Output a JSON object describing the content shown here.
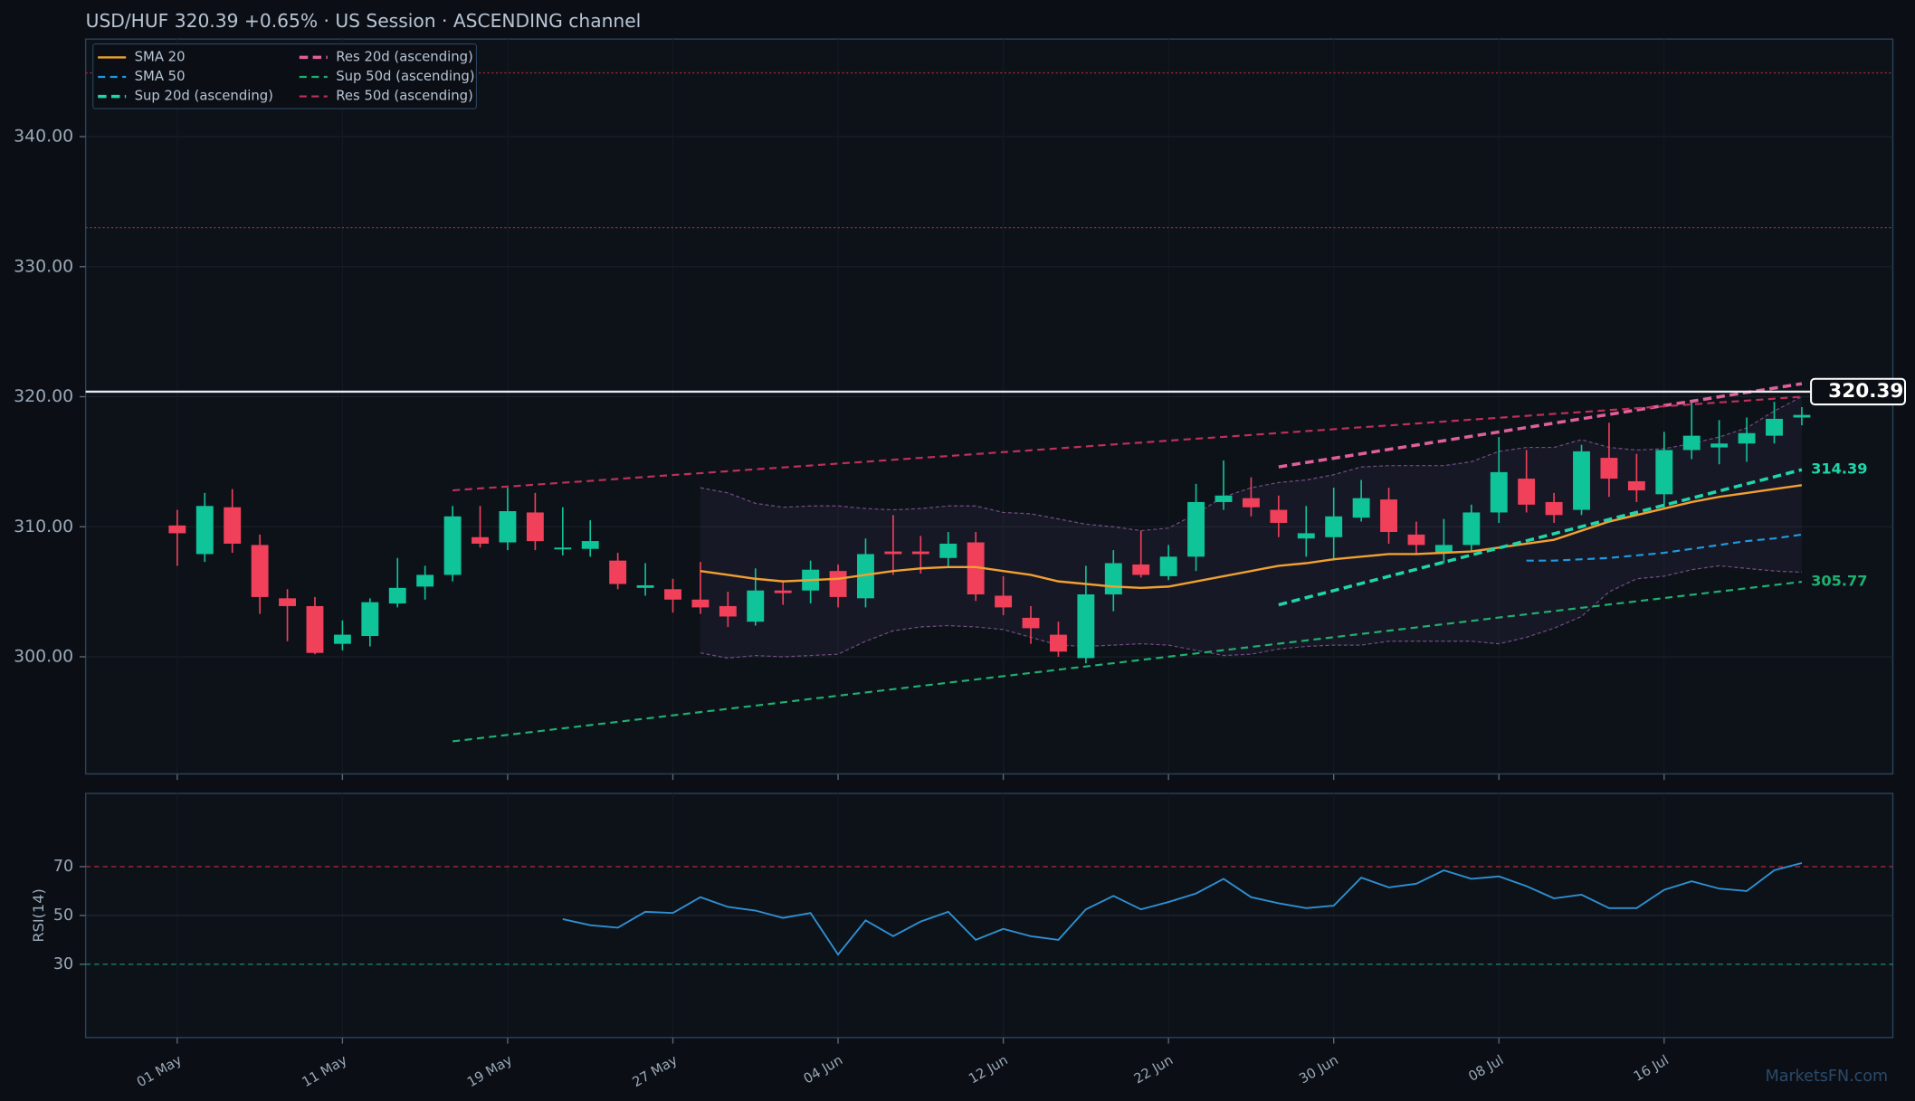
{
  "chart_data": {
    "type": "candlestick",
    "title": "USD/HUF   320.39   +0.65%  ·  US Session  ·  ASCENDING channel",
    "watermark": "MarketsFN.com",
    "categories": [
      "01 May",
      null,
      null,
      null,
      null,
      null,
      "11 May",
      null,
      null,
      null,
      null,
      null,
      "19 May",
      null,
      null,
      null,
      null,
      null,
      "27 May",
      null,
      null,
      null,
      null,
      null,
      "04 Jun",
      null,
      null,
      null,
      null,
      null,
      "12 Jun",
      null,
      null,
      null,
      null,
      null,
      "22 Jun",
      null,
      null,
      null,
      null,
      null,
      "30 Jun",
      null,
      null,
      null,
      null,
      null,
      "08 Jul",
      null,
      null,
      null,
      null,
      null,
      "16 Jul",
      null,
      null,
      null,
      null,
      null
    ],
    "open": [
      310.1,
      307.9,
      311.5,
      308.6,
      304.5,
      303.9,
      301.0,
      301.6,
      304.1,
      305.4,
      306.3,
      309.2,
      308.8,
      311.1,
      308.3,
      308.3,
      307.4,
      305.3,
      305.2,
      304.4,
      303.9,
      302.7,
      305.1,
      305.1,
      306.6,
      304.5,
      308.1,
      308.1,
      307.6,
      308.8,
      304.7,
      303.0,
      301.7,
      299.9,
      304.8,
      307.1,
      306.2,
      307.7,
      311.9,
      312.2,
      311.3,
      309.1,
      309.2,
      310.7,
      312.1,
      309.4,
      308.0,
      308.6,
      311.1,
      313.7,
      311.9,
      311.3,
      315.3,
      313.5,
      312.5,
      315.9,
      316.1,
      316.4,
      317.0,
      318.4
    ],
    "high": [
      311.3,
      312.6,
      312.9,
      309.4,
      305.2,
      304.6,
      302.8,
      304.5,
      307.6,
      307.0,
      311.6,
      311.6,
      313.0,
      312.6,
      311.5,
      310.5,
      308.0,
      307.2,
      306.0,
      307.3,
      305.0,
      306.8,
      305.9,
      307.4,
      307.1,
      309.1,
      310.9,
      309.3,
      309.6,
      309.6,
      306.2,
      303.9,
      302.7,
      307.0,
      308.2,
      309.7,
      308.6,
      313.3,
      315.1,
      313.8,
      312.4,
      311.6,
      313.0,
      313.6,
      313.0,
      310.4,
      310.6,
      311.7,
      316.9,
      315.9,
      312.6,
      316.3,
      318.0,
      315.6,
      317.3,
      319.7,
      318.2,
      318.4,
      319.6,
      319.2
    ],
    "low": [
      307.0,
      307.3,
      308.0,
      303.3,
      301.2,
      300.2,
      300.5,
      300.8,
      303.8,
      304.4,
      305.8,
      308.4,
      308.2,
      308.2,
      307.8,
      307.7,
      305.2,
      304.7,
      303.4,
      303.3,
      302.3,
      302.4,
      304.0,
      304.1,
      303.8,
      303.8,
      306.3,
      306.4,
      306.9,
      304.3,
      303.2,
      301.0,
      300.0,
      299.5,
      303.5,
      306.1,
      305.9,
      306.6,
      311.3,
      310.8,
      309.2,
      307.7,
      307.4,
      310.4,
      308.7,
      307.9,
      307.2,
      308.1,
      310.3,
      311.1,
      310.3,
      310.9,
      312.3,
      311.9,
      311.4,
      315.2,
      314.8,
      315.0,
      316.4,
      317.8
    ],
    "close": [
      309.5,
      311.6,
      308.7,
      304.6,
      303.9,
      300.3,
      301.7,
      304.2,
      305.3,
      306.3,
      310.8,
      308.7,
      311.2,
      308.9,
      308.4,
      308.9,
      305.6,
      305.5,
      304.4,
      303.8,
      303.1,
      305.1,
      304.9,
      306.7,
      304.6,
      307.9,
      307.9,
      307.9,
      308.7,
      304.8,
      303.8,
      302.2,
      300.4,
      304.8,
      307.2,
      306.3,
      307.7,
      311.9,
      312.4,
      311.5,
      310.3,
      309.5,
      310.8,
      312.2,
      309.6,
      308.6,
      308.6,
      311.1,
      314.2,
      311.7,
      310.9,
      315.8,
      313.7,
      312.8,
      315.9,
      317.0,
      316.4,
      317.2,
      318.3,
      318.6
    ],
    "up_color": "#10c49a",
    "down_color": "#f0405a",
    "series": [
      {
        "name": "SMA 20",
        "color": "#f0a030",
        "linestyle": "solid",
        "values": [
          null,
          null,
          null,
          null,
          null,
          null,
          null,
          null,
          null,
          null,
          null,
          null,
          null,
          null,
          null,
          null,
          null,
          null,
          null,
          306.6,
          306.3,
          306.0,
          305.8,
          305.9,
          306.0,
          306.3,
          306.6,
          306.8,
          306.9,
          306.9,
          306.6,
          306.3,
          305.8,
          305.6,
          305.4,
          305.3,
          305.4,
          305.8,
          306.2,
          306.6,
          307.0,
          307.2,
          307.5,
          307.7,
          307.9,
          307.9,
          308.0,
          308.1,
          308.4,
          308.7,
          309.0,
          309.7,
          310.4,
          310.9,
          311.4,
          311.9,
          312.3,
          312.6,
          312.9,
          313.2
        ]
      },
      {
        "name": "SMA 50",
        "color": "#1e9be0",
        "linestyle": "dashed",
        "values": [
          null,
          null,
          null,
          null,
          null,
          null,
          null,
          null,
          null,
          null,
          null,
          null,
          null,
          null,
          null,
          null,
          null,
          null,
          null,
          null,
          null,
          null,
          null,
          null,
          null,
          null,
          null,
          null,
          null,
          null,
          null,
          null,
          null,
          null,
          null,
          null,
          null,
          null,
          null,
          null,
          null,
          null,
          null,
          null,
          null,
          null,
          null,
          null,
          null,
          307.4,
          307.4,
          307.5,
          307.6,
          307.8,
          308.0,
          308.3,
          308.6,
          308.9,
          309.1,
          309.4
        ]
      },
      {
        "name": "Sup 20d (ascending)",
        "color": "#1fd6a8",
        "linestyle": "bold-dashed",
        "values": [
          null,
          null,
          null,
          null,
          null,
          null,
          null,
          null,
          null,
          null,
          null,
          null,
          null,
          null,
          null,
          null,
          null,
          null,
          null,
          null,
          null,
          null,
          null,
          null,
          null,
          null,
          null,
          null,
          null,
          null,
          null,
          null,
          null,
          null,
          null,
          null,
          null,
          null,
          null,
          null,
          304.0,
          304.55,
          305.09,
          305.64,
          306.19,
          306.73,
          307.28,
          307.83,
          308.37,
          308.92,
          309.47,
          310.01,
          310.56,
          311.11,
          311.66,
          312.2,
          312.75,
          313.3,
          313.84,
          314.39
        ]
      },
      {
        "name": "Res 20d (ascending)",
        "color": "#e0609a",
        "linestyle": "bold-dashed",
        "values": [
          null,
          null,
          null,
          null,
          null,
          null,
          null,
          null,
          null,
          null,
          null,
          null,
          null,
          null,
          null,
          null,
          null,
          null,
          null,
          null,
          null,
          null,
          null,
          null,
          null,
          null,
          null,
          null,
          null,
          null,
          null,
          null,
          null,
          null,
          null,
          null,
          null,
          null,
          null,
          null,
          314.6,
          314.94,
          315.27,
          315.61,
          315.95,
          316.28,
          316.62,
          316.96,
          317.29,
          317.63,
          317.97,
          318.3,
          318.64,
          318.98,
          319.32,
          319.65,
          319.99,
          320.33,
          320.66,
          321.0
        ]
      },
      {
        "name": "Sup 50d (ascending)",
        "color": "#20b070",
        "linestyle": "dashed",
        "values": [
          null,
          null,
          null,
          null,
          null,
          null,
          null,
          null,
          null,
          null,
          293.5,
          293.75,
          294.0,
          294.25,
          294.5,
          294.75,
          295.0,
          295.25,
          295.5,
          295.75,
          296.0,
          296.25,
          296.5,
          296.76,
          297.01,
          297.26,
          297.51,
          297.76,
          298.01,
          298.26,
          298.51,
          298.76,
          299.01,
          299.26,
          299.51,
          299.76,
          300.01,
          300.26,
          300.51,
          300.76,
          301.01,
          301.26,
          301.51,
          301.76,
          302.01,
          302.26,
          302.51,
          302.76,
          303.02,
          303.27,
          303.52,
          303.77,
          304.02,
          304.27,
          304.52,
          304.77,
          305.02,
          305.27,
          305.52,
          305.77
        ]
      },
      {
        "name": "Res 50d (ascending)",
        "color": "#c0305a",
        "linestyle": "dashed",
        "values": [
          null,
          null,
          null,
          null,
          null,
          null,
          null,
          null,
          null,
          null,
          312.8,
          312.95,
          313.09,
          313.24,
          313.39,
          313.53,
          313.68,
          313.83,
          313.98,
          314.12,
          314.27,
          314.42,
          314.56,
          314.71,
          314.86,
          315.0,
          315.15,
          315.3,
          315.44,
          315.59,
          315.74,
          315.88,
          316.03,
          316.18,
          316.33,
          316.47,
          316.62,
          316.77,
          316.91,
          317.06,
          317.21,
          317.35,
          317.5,
          317.65,
          317.79,
          317.94,
          318.09,
          318.24,
          318.38,
          318.53,
          318.68,
          318.82,
          318.97,
          319.12,
          319.26,
          319.41,
          319.56,
          319.7,
          319.85,
          320.0
        ]
      }
    ],
    "band": {
      "color": "#8a5a9a",
      "upper": [
        null,
        null,
        null,
        null,
        null,
        null,
        null,
        null,
        null,
        null,
        null,
        null,
        null,
        null,
        null,
        null,
        null,
        null,
        null,
        313.0,
        312.6,
        311.8,
        311.5,
        311.6,
        311.6,
        311.4,
        311.3,
        311.4,
        311.6,
        311.6,
        311.1,
        311.0,
        310.6,
        310.2,
        310.0,
        309.7,
        309.9,
        311.0,
        312.3,
        313.0,
        313.4,
        313.6,
        314.0,
        314.6,
        314.7,
        314.7,
        314.7,
        315.0,
        315.8,
        316.1,
        316.1,
        316.7,
        316.1,
        315.9,
        316.0,
        316.4,
        316.9,
        317.6,
        318.9,
        320.0
      ],
      "lower": [
        null,
        null,
        null,
        null,
        null,
        null,
        null,
        null,
        null,
        null,
        null,
        null,
        null,
        null,
        null,
        null,
        null,
        null,
        null,
        300.3,
        299.9,
        300.1,
        300.0,
        300.1,
        300.2,
        301.2,
        302.0,
        302.3,
        302.4,
        302.3,
        302.1,
        301.5,
        300.9,
        300.8,
        300.9,
        301.0,
        300.9,
        300.5,
        300.1,
        300.2,
        300.6,
        300.8,
        300.9,
        300.9,
        301.2,
        301.2,
        301.2,
        301.2,
        301.0,
        301.5,
        302.2,
        303.1,
        305.0,
        306.0,
        306.2,
        306.7,
        307.0,
        306.8,
        306.6,
        306.5
      ]
    },
    "levels": [
      344.9,
      333.0
    ],
    "level_color": "#a02838",
    "last_price": 320.39,
    "ylim": [
      291.0,
      347.5
    ],
    "yticks": [
      {
        "value": 300,
        "label": "300.00"
      },
      {
        "value": 310,
        "label": "310.00"
      },
      {
        "value": 320,
        "label": "320.00"
      },
      {
        "value": 330,
        "label": "330.00"
      },
      {
        "value": 340,
        "label": "340.00"
      }
    ],
    "grid": true,
    "legend": "upper left",
    "rsi": {
      "ylabel": "RSI(14)",
      "color": "#2f8fd0",
      "ylim": [
        0,
        100
      ],
      "yticks": [
        30,
        50,
        70
      ],
      "overbought": 70,
      "oversold": 30,
      "values": [
        null,
        null,
        null,
        null,
        null,
        null,
        null,
        null,
        null,
        null,
        null,
        null,
        null,
        null,
        48.5,
        46,
        45,
        51.5,
        51,
        57.5,
        53.5,
        52,
        49,
        51,
        34,
        48,
        41.5,
        47.5,
        51.5,
        40,
        44.5,
        41.5,
        40,
        52.5,
        58,
        52.5,
        55.5,
        59,
        65,
        57.5,
        55,
        53,
        54,
        65.5,
        61.5,
        63,
        68.5,
        65,
        66,
        62,
        57,
        58.5,
        53,
        53,
        60.5,
        64,
        61,
        60,
        68.5,
        71.5
      ]
    }
  }
}
